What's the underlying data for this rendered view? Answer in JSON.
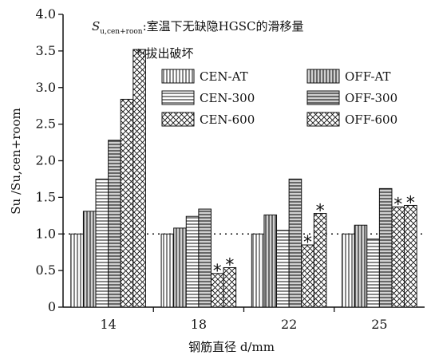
{
  "chart_data": {
    "type": "bar",
    "xlabel": "钢筋直径 d/mm",
    "ylabel": "Su /Su,cen+room",
    "ylim": [
      0,
      4.0
    ],
    "yticks": [
      "0",
      "0.5",
      "1.0",
      "1.5",
      "2.0",
      "2.5",
      "3.0",
      "3.5",
      "4.0"
    ],
    "categories": [
      "14",
      "18",
      "22",
      "25"
    ],
    "reference_line": 1.0,
    "grid": false,
    "legend_placement": "top-right",
    "notes": {
      "definition_prefix": "S",
      "definition_subscript": "u,cen+roon",
      "definition_rest": ":室温下无缺隐HGSC的滑移量",
      "star_note": "*:拔出破坏"
    },
    "series": [
      {
        "name": "CEN-AT",
        "pattern": "vlines",
        "values": [
          1.0,
          1.0,
          1.0,
          1.0
        ],
        "pullout": [
          false,
          false,
          false,
          false
        ]
      },
      {
        "name": "OFF-AT",
        "pattern": "vlines-gray",
        "values": [
          1.31,
          1.08,
          1.26,
          1.12
        ],
        "pullout": [
          false,
          false,
          false,
          false
        ]
      },
      {
        "name": "CEN-300",
        "pattern": "hlines",
        "values": [
          1.75,
          1.24,
          1.05,
          0.93
        ],
        "pullout": [
          false,
          false,
          false,
          false
        ]
      },
      {
        "name": "OFF-300",
        "pattern": "hlines-gray",
        "values": [
          2.28,
          1.34,
          1.75,
          1.62
        ],
        "pullout": [
          false,
          false,
          false,
          false
        ]
      },
      {
        "name": "CEN-600",
        "pattern": "cross",
        "values": [
          2.84,
          0.46,
          0.85,
          1.37
        ],
        "pullout": [
          false,
          true,
          true,
          true
        ]
      },
      {
        "name": "OFF-600",
        "pattern": "cross",
        "values": [
          3.52,
          0.54,
          1.28,
          1.39
        ],
        "pullout": [
          false,
          true,
          true,
          true
        ]
      }
    ],
    "star_symbol": "*"
  }
}
